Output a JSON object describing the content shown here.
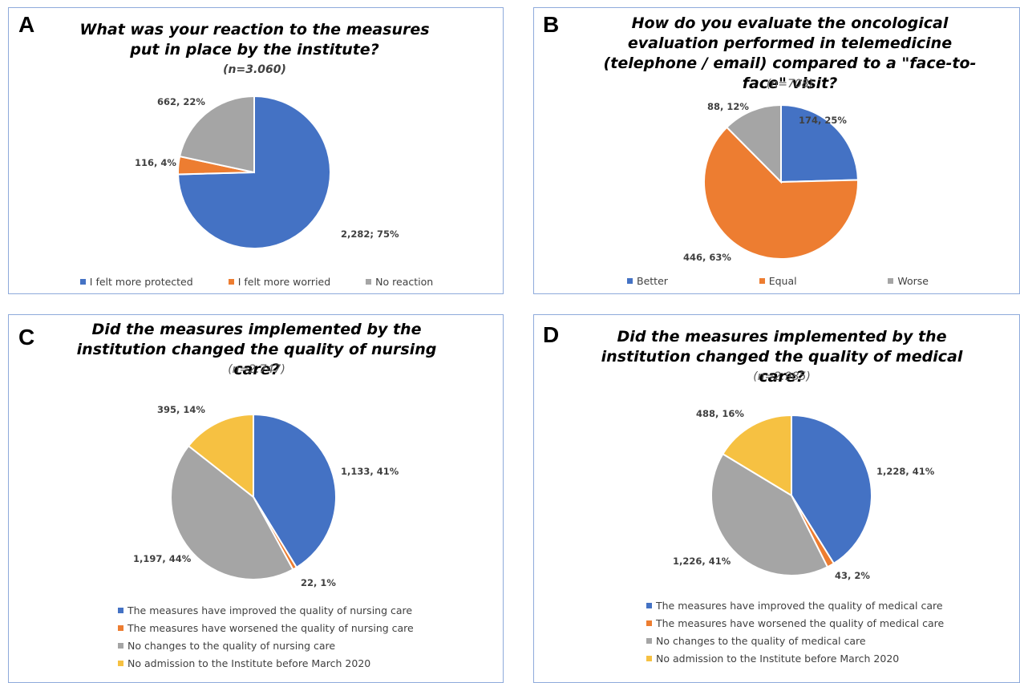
{
  "colors": {
    "blue": "#4472c4",
    "orange": "#ed7d31",
    "gray": "#a5a5a5",
    "yellow": "#f6c142"
  },
  "chart_data": [
    {
      "panel": "A",
      "type": "pie",
      "title": "What was your reaction to the measures put in place by the institute?",
      "subtitle": "(n=3.060)",
      "categories": [
        "I felt more protected",
        "I felt more worried",
        "No reaction"
      ],
      "values": [
        2282,
        116,
        662
      ],
      "percentages": [
        75,
        4,
        22
      ],
      "data_labels": [
        "2,282; 75%",
        "116, 4%",
        "662, 22%"
      ],
      "colors": [
        "#4472c4",
        "#ed7d31",
        "#a5a5a5"
      ],
      "legend": "bottom"
    },
    {
      "panel": "B",
      "type": "pie",
      "title": "How do you evaluate the oncological evaluation performed in telemedicine (telephone / email) compared to a \"face-to-face\" visit?",
      "subtitle": "(n=708)",
      "categories": [
        "Better",
        "Equal",
        "Worse"
      ],
      "values": [
        174,
        446,
        88
      ],
      "percentages": [
        25,
        63,
        12
      ],
      "data_labels": [
        "174, 25%",
        "446, 63%",
        "88, 12%"
      ],
      "colors": [
        "#4472c4",
        "#ed7d31",
        "#a5a5a5"
      ],
      "legend": "bottom"
    },
    {
      "panel": "C",
      "type": "pie",
      "title": "Did the measures implemented by the institution changed the quality of nursing care?",
      "subtitle": "(n=2.747)",
      "categories": [
        "The measures have improved the quality of nursing care",
        "The measures have worsened the quality of nursing care",
        "No changes to the quality of nursing care",
        "No admission to the Institute before March 2020"
      ],
      "values": [
        1133,
        22,
        1197,
        395
      ],
      "percentages": [
        41,
        1,
        44,
        14
      ],
      "data_labels": [
        "1,133, 41%",
        "22, 1%",
        "1,197, 44%",
        "395, 14%"
      ],
      "colors": [
        "#4472c4",
        "#ed7d31",
        "#a5a5a5",
        "#f6c142"
      ],
      "legend": "bottom"
    },
    {
      "panel": "D",
      "type": "pie",
      "title": "Did the measures implemented by the institution changed the quality of medical care?",
      "subtitle": "(n=2.985)",
      "categories": [
        "The measures have improved the quality of medical care",
        "The measures have worsened the quality of medical care",
        "No changes to the quality of medical care",
        "No admission to the Institute before March 2020"
      ],
      "values": [
        1228,
        43,
        1226,
        488
      ],
      "percentages": [
        41,
        2,
        41,
        16
      ],
      "data_labels": [
        "1,228, 41%",
        "43, 2%",
        "1,226, 41%",
        "488, 16%"
      ],
      "colors": [
        "#4472c4",
        "#ed7d31",
        "#a5a5a5",
        "#f6c142"
      ],
      "legend": "bottom"
    }
  ]
}
